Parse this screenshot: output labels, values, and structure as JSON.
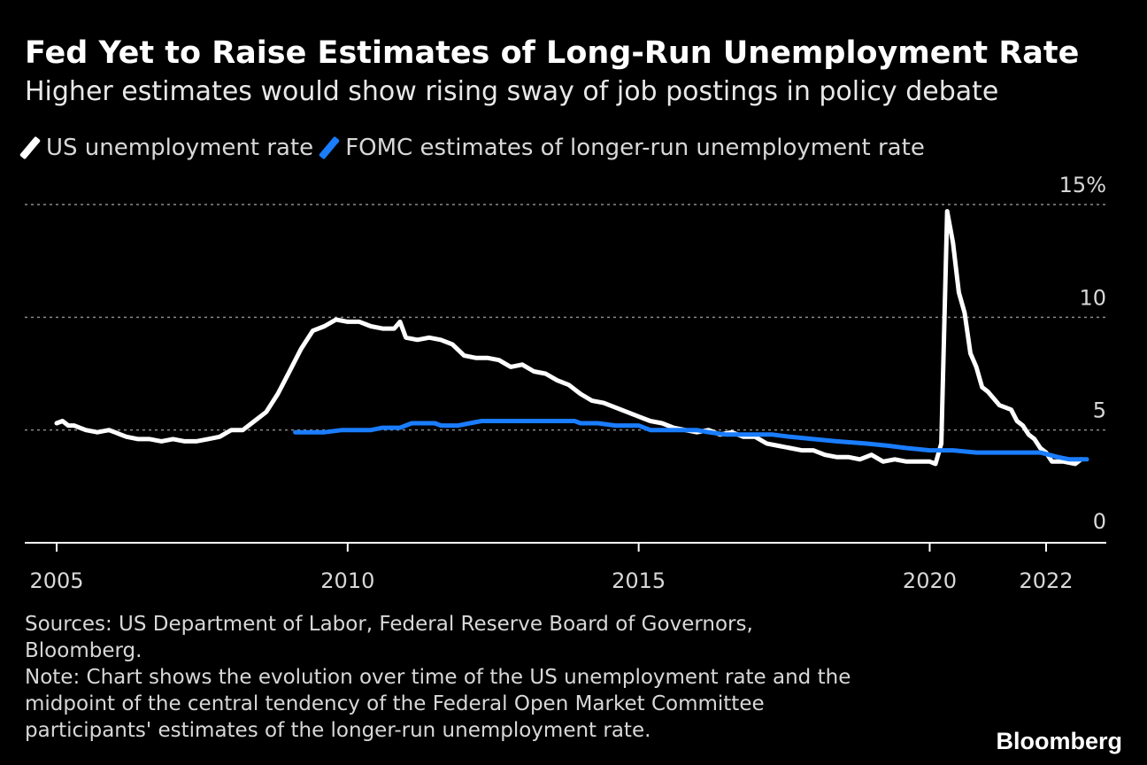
{
  "header": {
    "title": "Fed Yet to Raise Estimates of Long-Run Unemployment Rate",
    "subtitle": "Higher estimates would show rising sway of job postings in policy debate"
  },
  "legend": {
    "items": [
      {
        "label": "US unemployment rate",
        "color": "#ffffff"
      },
      {
        "label": "FOMC estimates of longer-run unemployment rate",
        "color": "#1a7dff"
      }
    ]
  },
  "footer": {
    "sources_line1": "Sources: US Department of Labor, Federal Reserve Board of Governors,",
    "sources_line2": "Bloomberg.",
    "note_line1": "Note: Chart shows the evolution over time of the US unemployment rate and the",
    "note_line2": "midpoint of the central tendency of the Federal Open Market Committee",
    "note_line3": "participants' estimates of the longer-run unemployment rate."
  },
  "brand": "Bloomberg",
  "chart_data": {
    "type": "line",
    "xlim": [
      2005.0,
      2023.0
    ],
    "ylim": [
      0,
      15
    ],
    "grid": true,
    "legend_position": "top-left",
    "x_ticks": [
      {
        "value": 2005,
        "label": "2005"
      },
      {
        "value": 2010,
        "label": "2010"
      },
      {
        "value": 2015,
        "label": "2015"
      },
      {
        "value": 2020,
        "label": "2020"
      },
      {
        "value": 2022,
        "label": "2022"
      }
    ],
    "y_ticks": [
      {
        "value": 15,
        "label": "15%"
      },
      {
        "value": 10,
        "label": "10"
      },
      {
        "value": 5,
        "label": "5"
      },
      {
        "value": 0,
        "label": "0"
      }
    ],
    "series": [
      {
        "name": "US unemployment rate",
        "color": "#ffffff",
        "points": [
          [
            2005.0,
            5.3
          ],
          [
            2005.1,
            5.4
          ],
          [
            2005.2,
            5.2
          ],
          [
            2005.3,
            5.2
          ],
          [
            2005.5,
            5.0
          ],
          [
            2005.7,
            4.9
          ],
          [
            2005.9,
            5.0
          ],
          [
            2006.0,
            4.9
          ],
          [
            2006.1,
            4.8
          ],
          [
            2006.2,
            4.7
          ],
          [
            2006.4,
            4.6
          ],
          [
            2006.6,
            4.6
          ],
          [
            2006.8,
            4.5
          ],
          [
            2007.0,
            4.6
          ],
          [
            2007.2,
            4.5
          ],
          [
            2007.4,
            4.5
          ],
          [
            2007.6,
            4.6
          ],
          [
            2007.8,
            4.7
          ],
          [
            2008.0,
            5.0
          ],
          [
            2008.2,
            5.0
          ],
          [
            2008.4,
            5.4
          ],
          [
            2008.6,
            5.8
          ],
          [
            2008.8,
            6.6
          ],
          [
            2009.0,
            7.6
          ],
          [
            2009.2,
            8.6
          ],
          [
            2009.4,
            9.4
          ],
          [
            2009.6,
            9.6
          ],
          [
            2009.8,
            9.9
          ],
          [
            2010.0,
            9.8
          ],
          [
            2010.2,
            9.8
          ],
          [
            2010.4,
            9.6
          ],
          [
            2010.6,
            9.5
          ],
          [
            2010.8,
            9.5
          ],
          [
            2010.9,
            9.8
          ],
          [
            2011.0,
            9.1
          ],
          [
            2011.2,
            9.0
          ],
          [
            2011.4,
            9.1
          ],
          [
            2011.6,
            9.0
          ],
          [
            2011.8,
            8.8
          ],
          [
            2012.0,
            8.3
          ],
          [
            2012.2,
            8.2
          ],
          [
            2012.4,
            8.2
          ],
          [
            2012.6,
            8.1
          ],
          [
            2012.8,
            7.8
          ],
          [
            2013.0,
            7.9
          ],
          [
            2013.2,
            7.6
          ],
          [
            2013.4,
            7.5
          ],
          [
            2013.6,
            7.2
          ],
          [
            2013.8,
            7.0
          ],
          [
            2014.0,
            6.6
          ],
          [
            2014.2,
            6.3
          ],
          [
            2014.4,
            6.2
          ],
          [
            2014.6,
            6.0
          ],
          [
            2014.8,
            5.8
          ],
          [
            2015.0,
            5.6
          ],
          [
            2015.2,
            5.4
          ],
          [
            2015.4,
            5.3
          ],
          [
            2015.6,
            5.1
          ],
          [
            2015.8,
            5.0
          ],
          [
            2016.0,
            4.9
          ],
          [
            2016.2,
            5.0
          ],
          [
            2016.4,
            4.8
          ],
          [
            2016.6,
            4.9
          ],
          [
            2016.8,
            4.7
          ],
          [
            2017.0,
            4.7
          ],
          [
            2017.2,
            4.4
          ],
          [
            2017.4,
            4.3
          ],
          [
            2017.6,
            4.2
          ],
          [
            2017.8,
            4.1
          ],
          [
            2018.0,
            4.1
          ],
          [
            2018.2,
            3.9
          ],
          [
            2018.4,
            3.8
          ],
          [
            2018.6,
            3.8
          ],
          [
            2018.8,
            3.7
          ],
          [
            2019.0,
            3.9
          ],
          [
            2019.2,
            3.6
          ],
          [
            2019.4,
            3.7
          ],
          [
            2019.6,
            3.6
          ],
          [
            2019.8,
            3.6
          ],
          [
            2020.0,
            3.6
          ],
          [
            2020.1,
            3.5
          ],
          [
            2020.2,
            4.4
          ],
          [
            2020.3,
            14.7
          ],
          [
            2020.4,
            13.3
          ],
          [
            2020.5,
            11.1
          ],
          [
            2020.6,
            10.2
          ],
          [
            2020.7,
            8.4
          ],
          [
            2020.8,
            7.8
          ],
          [
            2020.9,
            6.9
          ],
          [
            2021.0,
            6.7
          ],
          [
            2021.2,
            6.1
          ],
          [
            2021.4,
            5.9
          ],
          [
            2021.5,
            5.4
          ],
          [
            2021.6,
            5.2
          ],
          [
            2021.7,
            4.8
          ],
          [
            2021.8,
            4.6
          ],
          [
            2021.9,
            4.2
          ],
          [
            2022.0,
            4.0
          ],
          [
            2022.1,
            3.6
          ],
          [
            2022.3,
            3.6
          ],
          [
            2022.5,
            3.5
          ],
          [
            2022.6,
            3.7
          ]
        ]
      },
      {
        "name": "FOMC estimates of longer-run unemployment rate",
        "color": "#1a7dff",
        "points": [
          [
            2009.1,
            4.9
          ],
          [
            2009.6,
            4.9
          ],
          [
            2009.9,
            5.0
          ],
          [
            2010.4,
            5.0
          ],
          [
            2010.6,
            5.1
          ],
          [
            2010.9,
            5.1
          ],
          [
            2011.1,
            5.3
          ],
          [
            2011.5,
            5.3
          ],
          [
            2011.6,
            5.2
          ],
          [
            2011.9,
            5.2
          ],
          [
            2012.1,
            5.3
          ],
          [
            2012.3,
            5.4
          ],
          [
            2013.1,
            5.4
          ],
          [
            2013.9,
            5.4
          ],
          [
            2014.0,
            5.3
          ],
          [
            2014.3,
            5.3
          ],
          [
            2014.6,
            5.2
          ],
          [
            2015.0,
            5.2
          ],
          [
            2015.2,
            5.0
          ],
          [
            2016.0,
            5.0
          ],
          [
            2016.2,
            4.9
          ],
          [
            2016.5,
            4.8
          ],
          [
            2017.3,
            4.8
          ],
          [
            2017.6,
            4.7
          ],
          [
            2018.0,
            4.6
          ],
          [
            2018.4,
            4.5
          ],
          [
            2018.9,
            4.4
          ],
          [
            2019.3,
            4.3
          ],
          [
            2019.6,
            4.2
          ],
          [
            2020.0,
            4.1
          ],
          [
            2020.4,
            4.1
          ],
          [
            2020.8,
            4.0
          ],
          [
            2021.2,
            4.0
          ],
          [
            2021.6,
            4.0
          ],
          [
            2021.9,
            4.0
          ],
          [
            2022.2,
            3.8
          ],
          [
            2022.4,
            3.7
          ],
          [
            2022.7,
            3.7
          ]
        ]
      }
    ]
  }
}
